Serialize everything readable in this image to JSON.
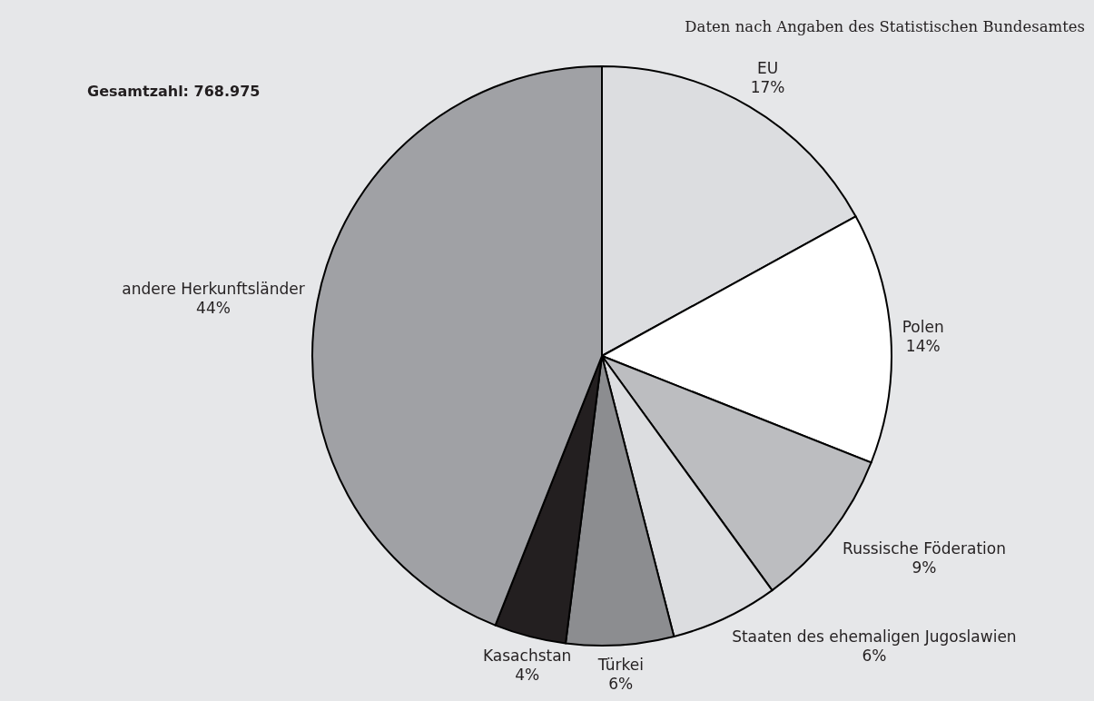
{
  "chart_data": {
    "type": "pie",
    "title": "Gesamtzahl: 768.975",
    "categories": [
      "EU",
      "Polen",
      "Russische Föderation",
      "Staaten des ehemaligen Jugoslawien",
      "Türkei",
      "Kasachstan",
      "andere Herkunftsländer"
    ],
    "values": [
      17,
      14,
      9,
      6,
      6,
      4,
      44
    ],
    "colors": [
      "#dcdde0",
      "#ffffff",
      "#bcbdc0",
      "#dcdde0",
      "#8c8d90",
      "#231f20",
      "#a0a1a5"
    ],
    "value_labels": [
      "17%",
      "14%",
      "9%",
      "6%",
      "6%",
      "4%",
      "44%"
    ],
    "annotations": [
      "Daten nach Angaben des Statistischen Bundesamtes"
    ]
  }
}
